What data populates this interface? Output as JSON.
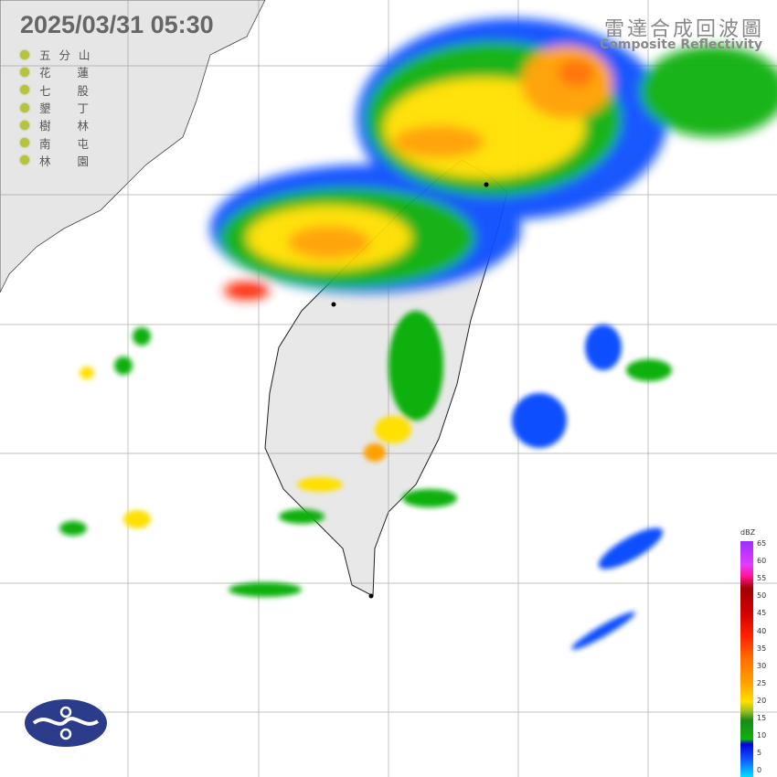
{
  "header": {
    "timestamp": "2025/03/31  05:30",
    "title_zh": "雷達合成回波圖",
    "title_en": "Composite Reflectivity"
  },
  "stations": [
    {
      "label": "五分山",
      "c": [
        "五",
        "分",
        "山"
      ]
    },
    {
      "label": "花蓮",
      "c": [
        "花",
        "",
        "蓮"
      ]
    },
    {
      "label": "七股",
      "c": [
        "七",
        "",
        "股"
      ]
    },
    {
      "label": "墾丁",
      "c": [
        "墾",
        "",
        "丁"
      ]
    },
    {
      "label": "樹林",
      "c": [
        "樹",
        "",
        "林"
      ]
    },
    {
      "label": "南屯",
      "c": [
        "南",
        "",
        "屯"
      ]
    },
    {
      "label": "林園",
      "c": [
        "林",
        "",
        "園"
      ]
    }
  ],
  "legend": {
    "unit": "dBZ",
    "ticks": [
      "65",
      "60",
      "55",
      "50",
      "45",
      "40",
      "35",
      "30",
      "25",
      "20",
      "15",
      "10",
      "5",
      "0"
    ],
    "colors": {
      "low": "#00e0ff",
      "blue": "#0000d8",
      "green": "#10b010",
      "yellow": "#ffe000",
      "orange": "#ffa000",
      "red": "#ff2000",
      "darkred": "#a00000",
      "magenta": "#e23cff",
      "violet": "#9b30ff"
    }
  },
  "logo": {
    "icon": "cwa-logo-icon",
    "color": "#2a3c8a"
  }
}
